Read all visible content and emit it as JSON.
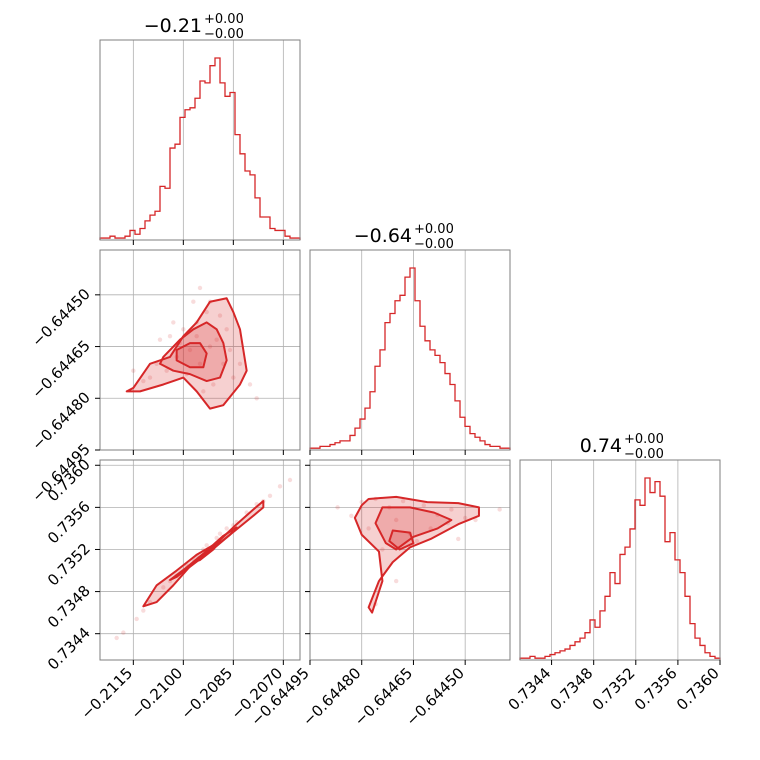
{
  "chart_data": {
    "type": "corner",
    "color": "#d62728",
    "n_params": 3,
    "panels": [
      {
        "kind": "hist",
        "row": 0,
        "col": 0,
        "title": {
          "value": "−0.21",
          "plus": "+0.00",
          "minus": "−0.00"
        },
        "x_range": [
          -0.2125,
          -0.2065
        ],
        "x_ticks": [
          -0.2115,
          -0.21,
          -0.2085,
          -0.207
        ],
        "x_ticklabels": [],
        "bin_counts": [
          1,
          1,
          2,
          1,
          1,
          2,
          5,
          3,
          6,
          10,
          13,
          15,
          28,
          27,
          48,
          50,
          64,
          68,
          69,
          74,
          83,
          82,
          91,
          95,
          82,
          75,
          77,
          55,
          45,
          36,
          34,
          22,
          12,
          12,
          6,
          5,
          5,
          2,
          1,
          1
        ]
      },
      {
        "kind": "joint",
        "row": 1,
        "col": 0,
        "x_range": [
          -0.2125,
          -0.2065
        ],
        "y_range": [
          -0.64495,
          -0.64437
        ],
        "x_ticks": [
          -0.2115,
          -0.21,
          -0.2085,
          -0.207
        ],
        "y_ticks": [
          -0.6445,
          -0.64465,
          -0.6448,
          -0.64495
        ],
        "y_ticklabels": [
          "−0.64450",
          "−0.64465",
          "−0.64480",
          "−0.64495"
        ],
        "points_x": [
          -0.2105,
          -0.2102,
          -0.2098,
          -0.2095,
          -0.2092,
          -0.2096,
          -0.21,
          -0.2103,
          -0.209,
          -0.2088,
          -0.2085,
          -0.2093,
          -0.2097,
          -0.2108,
          -0.211,
          -0.2094,
          -0.2091,
          -0.2099,
          -0.2087,
          -0.2101,
          -0.2104,
          -0.2089,
          -0.2096,
          -0.2092,
          -0.2086,
          -0.2112,
          -0.2115,
          -0.2083,
          -0.208,
          -0.2078,
          -0.2107,
          -0.2095
        ],
        "points_y": [
          -0.64472,
          -0.64468,
          -0.64466,
          -0.6447,
          -0.64465,
          -0.64462,
          -0.6446,
          -0.64458,
          -0.64463,
          -0.6447,
          -0.64474,
          -0.64455,
          -0.64452,
          -0.6447,
          -0.64474,
          -0.64478,
          -0.64476,
          -0.64473,
          -0.6446,
          -0.64464,
          -0.64462,
          -0.64456,
          -0.64458,
          -0.64452,
          -0.64466,
          -0.64475,
          -0.64472,
          -0.6447,
          -0.64476,
          -0.6448,
          -0.64463,
          -0.64448
        ],
        "contour_levels": [
          {
            "x": [
              -0.2115,
              -0.211,
              -0.2104,
              -0.21,
              -0.2096,
              -0.2092,
              -0.2087,
              -0.2085,
              -0.2083,
              -0.2082,
              -0.2081,
              -0.2083,
              -0.2088,
              -0.2092,
              -0.2096,
              -0.21,
              -0.2106,
              -0.2113,
              -0.2117
            ],
            "y": [
              -0.64477,
              -0.6447,
              -0.64468,
              -0.64462,
              -0.64458,
              -0.64452,
              -0.64451,
              -0.64455,
              -0.6446,
              -0.64466,
              -0.64472,
              -0.64476,
              -0.64482,
              -0.64483,
              -0.64478,
              -0.64474,
              -0.64476,
              -0.64478,
              -0.64478
            ]
          },
          {
            "x": [
              -0.2106,
              -0.2101,
              -0.2097,
              -0.2093,
              -0.209,
              -0.2088,
              -0.2087,
              -0.2089,
              -0.2093,
              -0.2098,
              -0.2103,
              -0.2107
            ],
            "y": [
              -0.64468,
              -0.64463,
              -0.6446,
              -0.64458,
              -0.6446,
              -0.64464,
              -0.64469,
              -0.64474,
              -0.64475,
              -0.64473,
              -0.64472,
              -0.6447
            ]
          },
          {
            "x": [
              -0.2102,
              -0.2098,
              -0.2095,
              -0.2093,
              -0.2094,
              -0.2098,
              -0.2102
            ],
            "y": [
              -0.64466,
              -0.64464,
              -0.64464,
              -0.64467,
              -0.64471,
              -0.64471,
              -0.64469
            ]
          }
        ]
      },
      {
        "kind": "hist",
        "row": 1,
        "col": 1,
        "title": {
          "value": "−0.64",
          "plus": "+0.00",
          "minus": "−0.00"
        },
        "x_range": [
          -0.64495,
          -0.64437
        ],
        "x_ticks": [
          -0.64495,
          -0.6448,
          -0.64465,
          -0.6445
        ],
        "x_ticklabels": [],
        "bin_counts": [
          1,
          1,
          2,
          2,
          3,
          4,
          5,
          5,
          8,
          12,
          17,
          23,
          32,
          46,
          55,
          70,
          75,
          82,
          85,
          95,
          100,
          82,
          68,
          60,
          55,
          52,
          48,
          42,
          36,
          27,
          18,
          13,
          9,
          7,
          5,
          3,
          2,
          2,
          1,
          1
        ]
      },
      {
        "kind": "joint",
        "row": 2,
        "col": 0,
        "x_range": [
          -0.2125,
          -0.2065
        ],
        "y_range": [
          0.73415,
          0.73605
        ],
        "x_ticks": [
          -0.2115,
          -0.21,
          -0.2085,
          -0.207
        ],
        "y_ticks": [
          0.7344,
          0.7348,
          0.7352,
          0.7356,
          0.736
        ],
        "x_ticklabels": [
          "−0.2115",
          "−0.2100",
          "−0.2085",
          "−0.2070"
        ],
        "y_ticklabels": [
          "0.7344",
          "0.7348",
          "0.7352",
          "0.7356",
          "0.7360"
        ],
        "points_x": [
          -0.2118,
          -0.2114,
          -0.211,
          -0.2106,
          -0.2102,
          -0.2099,
          -0.2096,
          -0.2093,
          -0.209,
          -0.2087,
          -0.2084,
          -0.2081,
          -0.2078,
          -0.2074,
          -0.2071,
          -0.2068,
          -0.2112,
          -0.2104,
          -0.2094,
          -0.2085,
          -0.2076,
          -0.212,
          -0.2097,
          -0.2089
        ],
        "points_y": [
          0.73441,
          0.73454,
          0.7347,
          0.73484,
          0.73495,
          0.73505,
          0.73514,
          0.73524,
          0.73531,
          0.7354,
          0.73546,
          0.73555,
          0.73563,
          0.73571,
          0.7358,
          0.73586,
          0.73462,
          0.7349,
          0.7352,
          0.73543,
          0.73566,
          0.73436,
          0.73511,
          0.73535
        ],
        "contour_levels": [
          {
            "x": [
              -0.2112,
              -0.2108,
              -0.2102,
              -0.2096,
              -0.209,
              -0.2084,
              -0.2079,
              -0.2076,
              -0.2076,
              -0.2079,
              -0.2086,
              -0.2092,
              -0.2098,
              -0.2103,
              -0.2108
            ],
            "y": [
              0.73466,
              0.73486,
              0.735,
              0.73515,
              0.73526,
              0.73544,
              0.73558,
              0.73566,
              0.7356,
              0.73552,
              0.73534,
              0.73519,
              0.73504,
              0.73486,
              0.7347
            ]
          },
          {
            "x": [
              -0.2104,
              -0.2099,
              -0.2094,
              -0.2088,
              -0.2084,
              -0.2086,
              -0.2092,
              -0.2097,
              -0.2102
            ],
            "y": [
              0.73491,
              0.73503,
              0.73516,
              0.73533,
              0.73541,
              0.73534,
              0.73518,
              0.73506,
              0.73494
            ]
          },
          {
            "x": [
              -0.2097,
              -0.2093,
              -0.2089,
              -0.2091,
              -0.2095
            ],
            "y": [
              0.73508,
              0.73518,
              0.73528,
              0.7352,
              0.7351
            ]
          }
        ]
      },
      {
        "kind": "joint",
        "row": 2,
        "col": 1,
        "x_range": [
          -0.64495,
          -0.64437
        ],
        "y_range": [
          0.73415,
          0.73605
        ],
        "x_ticks": [
          -0.64495,
          -0.6448,
          -0.64465,
          -0.6445
        ],
        "y_ticks": [
          0.7344,
          0.7348,
          0.7352,
          0.7356,
          0.736
        ],
        "x_ticklabels": [
          "−0.64495",
          "−0.64480",
          "−0.64465",
          "−0.64450"
        ],
        "points_x": [
          -0.6448,
          -0.64476,
          -0.64472,
          -0.64468,
          -0.64462,
          -0.64458,
          -0.64454,
          -0.6445,
          -0.64447,
          -0.64483,
          -0.64478,
          -0.6447,
          -0.64466,
          -0.6446,
          -0.64455,
          -0.64487,
          -0.64474,
          -0.64464,
          -0.64452,
          -0.6444,
          -0.64476,
          -0.6447
        ],
        "points_y": [
          0.73565,
          0.73568,
          0.7356,
          0.73566,
          0.73562,
          0.73553,
          0.73558,
          0.7355,
          0.73548,
          0.73552,
          0.7354,
          0.73548,
          0.73535,
          0.7354,
          0.73545,
          0.7356,
          0.7352,
          0.73528,
          0.7353,
          0.73558,
          0.73468,
          0.7349
        ],
        "contour_levels": [
          {
            "x": [
              -0.64478,
              -0.6447,
              -0.64461,
              -0.64452,
              -0.64446,
              -0.64446,
              -0.64452,
              -0.6446,
              -0.64466,
              -0.64471,
              -0.64475,
              -0.64478,
              -0.64477,
              -0.64474,
              -0.64475,
              -0.6448,
              -0.64482,
              -0.6448
            ],
            "y": [
              0.73568,
              0.7357,
              0.73565,
              0.73564,
              0.7356,
              0.73552,
              0.73544,
              0.7353,
              0.73522,
              0.73508,
              0.7349,
              0.73465,
              0.7346,
              0.7349,
              0.73518,
              0.73534,
              0.7355,
              0.73562
            ]
          },
          {
            "x": [
              -0.64474,
              -0.64466,
              -0.64459,
              -0.64454,
              -0.64458,
              -0.64465,
              -0.6447,
              -0.64473,
              -0.64476
            ],
            "y": [
              0.7356,
              0.7356,
              0.73555,
              0.73548,
              0.7354,
              0.73532,
              0.7352,
              0.73526,
              0.73545
            ]
          },
          {
            "x": [
              -0.64471,
              -0.64466,
              -0.64465,
              -0.64469,
              -0.64472
            ],
            "y": [
              0.73538,
              0.73536,
              0.73526,
              0.7352,
              0.73528
            ]
          }
        ]
      },
      {
        "kind": "hist",
        "row": 2,
        "col": 2,
        "title": {
          "value": "0.74",
          "plus": "+0.00",
          "minus": "−0.00"
        },
        "x_range": [
          0.7341,
          0.736
        ],
        "x_ticks": [
          0.7344,
          0.7348,
          0.7352,
          0.7356,
          0.736
        ],
        "x_ticklabels": [
          "0.7344",
          "0.7348",
          "0.7352",
          "0.7356",
          "0.7360"
        ],
        "bin_counts": [
          1,
          1,
          2,
          1,
          1,
          2,
          3,
          4,
          5,
          6,
          8,
          10,
          12,
          15,
          22,
          18,
          27,
          35,
          48,
          42,
          58,
          62,
          72,
          88,
          85,
          100,
          92,
          98,
          90,
          65,
          70,
          55,
          48,
          35,
          20,
          12,
          8,
          4,
          2,
          1
        ]
      }
    ]
  }
}
